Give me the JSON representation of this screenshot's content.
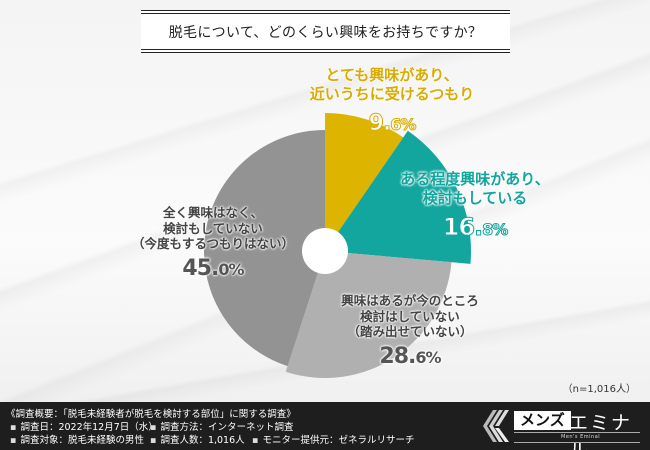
{
  "title": "脱毛について、どのくらい興味をお持ちですか？",
  "chart_data": {
    "type": "pie",
    "title": "脱毛について、どのくらい興味をお持ちですか？",
    "style": "donut-with-small-hole, exploded-radius slices",
    "start_angle": "12 o'clock, clockwise",
    "categories": [
      "とても興味があり、近いうちに受けるつもり",
      "ある程度興味があり、検討もしている",
      "興味はあるが今のところ検討はしていない（踏み出せていない）",
      "全く興味はなく、検討もしていない（今度もするつもりはない）"
    ],
    "values": [
      9.6,
      16.8,
      28.6,
      45.0
    ],
    "unit": "%",
    "colors": [
      "#DDB400",
      "#13A69E",
      "#B0B0B0",
      "#939393"
    ],
    "sample_size": "n=1,016人"
  },
  "slices": [
    {
      "line1": "とても興味があり、",
      "line2": "近いうちに受けるつもり",
      "line3": "",
      "pct_int": "9.",
      "pct_dec": "6%",
      "color": "#DDB400"
    },
    {
      "line1": "ある程度興味があり、",
      "line2": "検討もしている",
      "line3": "",
      "pct_int": "16.",
      "pct_dec": "8%",
      "color": "#13A69E"
    },
    {
      "line1": "興味はあるが今のところ",
      "line2": "検討はしていない",
      "line3": "（踏み出せていない）",
      "pct_int": "28.",
      "pct_dec": "6%",
      "color": "#B0B0B0"
    },
    {
      "line1": "全く興味はなく、",
      "line2": "検討もしていない",
      "line3": "（今度もするつもりはない）",
      "pct_int": "45.",
      "pct_dec": "0%",
      "color": "#939393"
    }
  ],
  "sample_note": "（n=1,016人）",
  "footer": {
    "survey_title": "《調査概要：「脱毛未経験者が脱毛を検討する部位」に関する調査》",
    "survey_date": "調査日：2022年12月7日（水）",
    "survey_method": "調査方法：インターネット調査",
    "survey_target": "調査対象：脱毛未経験の男性",
    "survey_count": "調査人数：1,016人",
    "monitor_provider": "モニター提供元：ゼネラルリサーチ"
  },
  "logo": {
    "mens": "メンズ",
    "eminal": "エミナル",
    "sub": "Men's Eminal"
  }
}
